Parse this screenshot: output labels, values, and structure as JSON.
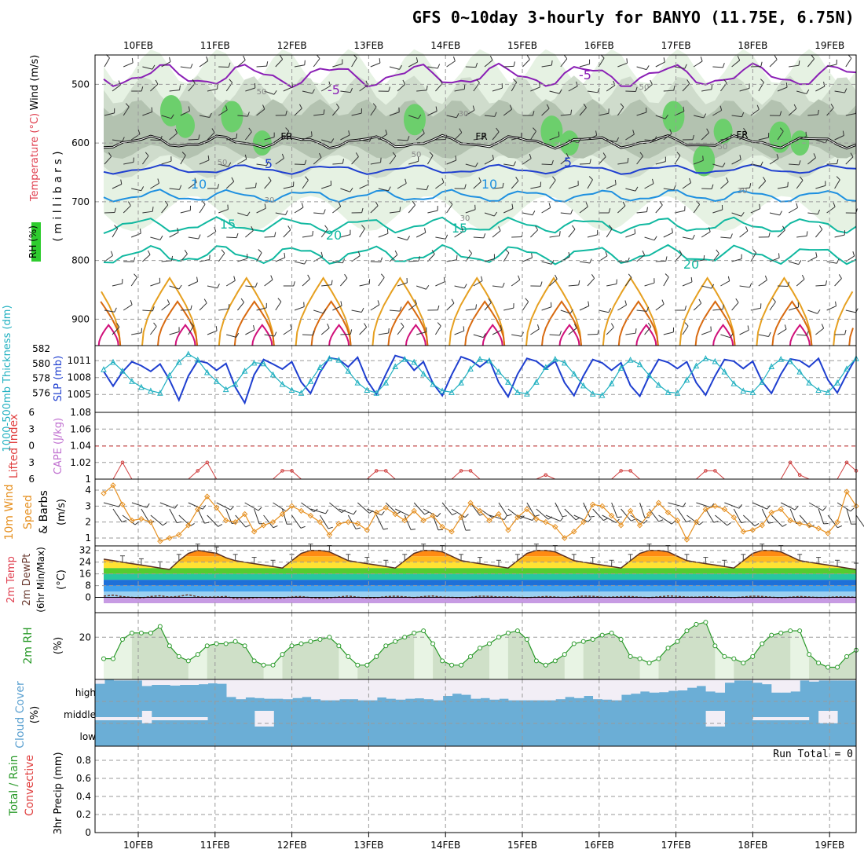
{
  "title": "GFS 0~10day 3-hourly for BANYO (11.75E, 6.75N)",
  "colors": {
    "purple": "#8a1fb5",
    "black": "#000000",
    "blue": "#1f3fd0",
    "lightblue": "#1e90e0",
    "teal": "#10b8a0",
    "orange": "#e6a020",
    "darkorange": "#d86a10",
    "magenta": "#d0107a",
    "rh_light": "#e6f2e3",
    "rh_mid": "#cfdccc",
    "rh_dark": "#b3c2b0",
    "rh_green": "#6ccf6c",
    "slp": "#1f3fd0",
    "thick": "#20b0c0",
    "cape": "#d04040",
    "wind": "#e69020",
    "rh2m": "#2a9a2a",
    "cloud": "#6baed6",
    "cloudgap": "#f2eef6"
  },
  "chart_data": [
    {
      "type": "heatmap",
      "name": "upper-air",
      "y_label_parts": [
        "RH (%)",
        "Temperature (°C)",
        "Wind (m/s)"
      ],
      "y_axis_label": "( m i l l i b a r s )",
      "y_ticks": [
        500,
        600,
        700,
        800,
        900
      ],
      "x_labels": [
        "10FEB",
        "11FEB",
        "12FEB",
        "13FEB",
        "14FEB",
        "15FEB",
        "16FEB",
        "17FEB",
        "18FEB",
        "19FEB"
      ],
      "contour_labels": [
        "-5",
        "-5",
        "FR",
        "FR",
        "FR",
        "5",
        "5",
        "10",
        "10",
        "15",
        "15",
        "20",
        "20"
      ],
      "rh_labels": [
        "50",
        "30",
        "50",
        "30",
        "50",
        "50",
        "30",
        "30",
        "50"
      ]
    },
    {
      "type": "line",
      "name": "thickness-slp",
      "ylabel_left": "1000-500mb Thickness (dm)",
      "ylabel_right": "SLP (mb)",
      "left_ticks": [
        582,
        580,
        578,
        576
      ],
      "right_ticks": [
        1011,
        1008,
        1005
      ],
      "series": [
        {
          "name": "SLP",
          "values": [
            1009.1,
            1006.5,
            1009.0,
            1010.8,
            1010.1,
            1009.1,
            1010.4,
            1007.6,
            1004.0,
            1008.3,
            1011.0,
            1010.6,
            1009.3,
            1010.5,
            1006.3,
            1003.5,
            1008.5,
            1011.2,
            1010.4,
            1009.5,
            1010.8,
            1007.2,
            1005.2,
            1008.9,
            1011.5,
            1011.2,
            1009.9,
            1011.6,
            1007.5,
            1005.0,
            1008.6,
            1011.9,
            1011.4,
            1009.3,
            1010.8,
            1007.0,
            1004.8,
            1008.5,
            1011.7,
            1011.1,
            1009.9,
            1011.2,
            1007.1,
            1004.6,
            1008.6,
            1011.4,
            1010.9,
            1009.6,
            1010.9,
            1007.1,
            1004.8,
            1008.3,
            1011.2,
            1010.6,
            1009.3,
            1010.6,
            1006.6,
            1004.7,
            1008.3,
            1011.2,
            1010.7,
            1009.6,
            1010.8,
            1007.1,
            1004.9,
            1008.3,
            1011.2,
            1010.9,
            1009.6,
            1010.9,
            1007.3,
            1005.2,
            1008.6,
            1011.3,
            1011.0,
            1009.9,
            1011.4,
            1007.6,
            1005.3,
            1008.6,
            1011.6
          ]
        },
        {
          "name": "Thickness",
          "values": [
            579.2,
            580.2,
            579.0,
            577.6,
            576.8,
            576.3,
            576.0,
            578.4,
            580.2,
            581.3,
            580.5,
            578.8,
            577.6,
            576.5,
            577.2,
            579.0,
            580.1,
            580.0,
            578.5,
            577.2,
            576.4,
            576.0,
            577.6,
            579.5,
            580.7,
            580.5,
            579.0,
            577.4,
            576.4,
            576.0,
            577.4,
            579.6,
            580.6,
            580.2,
            578.6,
            577.2,
            576.3,
            576.1,
            577.4,
            579.3,
            580.6,
            580.4,
            578.9,
            577.5,
            576.1,
            575.9,
            577.5,
            579.5,
            580.6,
            580.1,
            578.6,
            577.0,
            575.9,
            575.7,
            577.3,
            579.4,
            580.5,
            579.9,
            578.4,
            577.1,
            576.1,
            576.0,
            577.8,
            579.7,
            580.7,
            580.3,
            578.9,
            577.3,
            576.3,
            576.1,
            577.5,
            579.6,
            580.6,
            580.3,
            578.9,
            577.4,
            576.4,
            576.1,
            577.4,
            579.3,
            580.7
          ]
        }
      ]
    },
    {
      "type": "line",
      "name": "lifted-index-cape",
      "ylabel_left": "Lifted Index",
      "ylabel_right": "CAPE (J/kg)",
      "left_ticks": [
        "6",
        "3",
        "0",
        "3",
        "6"
      ],
      "right_ticks": [
        "1.08",
        "1.06",
        "1.04",
        "1.02",
        "1"
      ],
      "series": [
        {
          "name": "CAPE",
          "values": [
            1,
            1,
            1.02,
            1,
            1,
            1,
            1,
            1,
            1,
            1,
            1.01,
            1.02,
            1,
            1,
            1,
            1,
            1,
            1,
            1,
            1.01,
            1.01,
            1,
            1,
            1,
            1,
            1,
            1,
            1,
            1,
            1.01,
            1.01,
            1,
            1,
            1,
            1,
            1,
            1,
            1,
            1.01,
            1.01,
            1,
            1,
            1,
            1,
            1,
            1,
            1,
            1.005,
            1,
            1,
            1,
            1,
            1,
            1,
            1,
            1.01,
            1.01,
            1,
            1,
            1,
            1,
            1,
            1,
            1,
            1.01,
            1.01,
            1,
            1,
            1,
            1,
            1,
            1,
            1,
            1.02,
            1.005,
            1,
            1,
            1,
            1,
            1.02,
            1.01
          ]
        }
      ]
    },
    {
      "type": "line",
      "name": "10m-wind",
      "ylabel": "10m Wind Speed & Barbs (m/s)",
      "y_ticks": [
        4,
        3,
        2,
        1
      ],
      "series": [
        {
          "name": "Wind speed",
          "values": [
            3.8,
            4.3,
            3.1,
            2.1,
            2.2,
            2.0,
            0.8,
            1.0,
            1.2,
            1.8,
            2.8,
            3.6,
            2.9,
            2.1,
            2.0,
            2.5,
            1.4,
            1.8,
            2.0,
            2.5,
            3.0,
            2.7,
            2.4,
            2.0,
            1.2,
            1.9,
            2.0,
            1.9,
            1.5,
            2.6,
            2.9,
            2.5,
            2.1,
            2.7,
            2.1,
            2.4,
            1.7,
            1.4,
            2.3,
            3.2,
            2.7,
            2.1,
            2.5,
            1.5,
            2.3,
            2.8,
            2.2,
            2.0,
            1.7,
            1.0,
            1.4,
            2.0,
            3.1,
            3.0,
            2.4,
            1.8,
            2.7,
            1.8,
            2.5,
            3.2,
            2.6,
            2.1,
            0.9,
            2.0,
            2.8,
            3.0,
            2.8,
            2.3,
            1.4,
            1.5,
            1.8,
            2.6,
            2.8,
            2.1,
            1.9,
            1.8,
            1.6,
            1.3,
            2.0,
            3.9,
            3.0
          ]
        }
      ]
    },
    {
      "type": "area",
      "name": "2m-temp",
      "ylabel": "2m Temp 2m DewPt (6hr Min/Max) (°C)",
      "y_ticks": [
        32,
        24,
        16,
        8,
        0
      ],
      "series": [
        {
          "name": "Temp",
          "values": [
            26,
            25,
            24,
            23,
            22,
            21,
            20,
            19,
            25,
            30,
            32,
            31,
            30,
            27,
            25,
            24,
            23,
            22,
            21,
            20,
            25,
            30,
            32,
            32,
            31,
            28,
            25,
            24,
            23,
            22,
            21,
            20,
            25,
            30,
            32,
            32,
            31,
            28,
            25,
            24,
            23,
            22,
            21,
            20,
            25,
            30,
            32,
            32,
            31,
            28,
            25,
            24,
            23,
            22,
            21,
            20,
            25,
            30,
            32,
            32,
            31,
            28,
            25,
            24,
            23,
            22,
            21,
            20,
            25,
            30,
            32,
            32,
            31,
            28,
            25,
            24,
            23,
            22,
            21,
            20,
            19
          ]
        },
        {
          "name": "DewPt",
          "values": [
            0.8,
            1.5,
            0.5,
            0.0,
            -0.4,
            0.6,
            1.1,
            0.2,
            0.7,
            1.8,
            0.4,
            0.2,
            0.3,
            0.6,
            -0.9,
            -1.0,
            -0.3,
            -0.1,
            -0.6,
            -0.5,
            0.4,
            0.6,
            -0.2,
            -0.7,
            -0.4,
            0.3,
            0.9,
            0.2,
            -0.4,
            -0.3,
            0.5,
            0.8,
            0.4,
            -0.2,
            0.6,
            0.9,
            0.2,
            0.0,
            -0.4,
            0.1,
            0.8,
            0.7,
            0.3,
            0.4,
            0.1,
            -0.2,
            0.2,
            0.6,
            0.3,
            -0.1,
            0.4,
            0.8,
            0.7,
            0.2,
            0.2,
            0.5,
            0.6,
            0.1,
            -0.2,
            0.4,
            0.9,
            0.7,
            0.2,
            0.1,
            0.5,
            0.4,
            0.0,
            -0.2,
            0.3,
            0.8,
            0.6,
            0.1,
            -0.3,
            0.2,
            0.6,
            0.3,
            -0.1,
            0.0,
            0.4,
            0.3,
            0.1
          ]
        }
      ]
    },
    {
      "type": "area",
      "name": "2m-rh",
      "ylabel": "2m RH (%)",
      "y_ticks": [
        20
      ],
      "series": [
        {
          "name": "RH",
          "values": [
            10,
            10,
            19,
            22,
            22,
            22,
            25,
            16,
            11,
            9,
            12,
            16,
            17,
            17,
            18,
            16,
            9,
            7,
            7,
            12,
            16,
            17,
            18,
            19,
            20,
            16,
            11,
            7,
            7,
            11,
            16,
            18,
            20,
            22,
            23,
            17,
            9,
            7,
            7,
            11,
            15,
            17,
            20,
            22,
            23,
            19,
            9,
            7,
            9,
            12,
            17,
            18,
            19,
            21,
            22,
            19,
            11,
            10,
            8,
            10,
            15,
            18,
            23,
            26,
            27,
            16,
            11,
            10,
            8,
            11,
            17,
            21,
            22,
            23,
            23,
            12,
            8,
            6,
            6,
            11,
            14
          ]
        }
      ]
    },
    {
      "type": "bar",
      "name": "cloud-cover",
      "ylabel": "Cloud Cover (%)",
      "level_labels": [
        "high",
        "middle",
        "low"
      ],
      "series": [
        {
          "name": "high",
          "values": [
            80,
            98,
            95,
            95,
            95,
            70,
            75,
            75,
            72,
            75,
            75,
            78,
            82,
            80,
            20,
            10,
            18,
            15,
            12,
            12,
            10,
            15,
            20,
            10,
            5,
            5,
            10,
            10,
            5,
            5,
            18,
            12,
            8,
            12,
            14,
            10,
            5,
            25,
            35,
            30,
            12,
            15,
            8,
            12,
            5,
            5,
            5,
            5,
            5,
            10,
            20,
            15,
            25,
            10,
            8,
            5,
            30,
            35,
            45,
            40,
            42,
            48,
            50,
            62,
            70,
            45,
            40,
            85,
            95,
            95,
            85,
            78,
            40,
            40,
            45,
            95,
            90,
            95,
            95,
            95,
            95
          ]
        },
        {
          "name": "middle",
          "values": [
            0,
            0,
            0,
            0,
            0,
            85,
            0,
            0,
            0,
            0,
            0,
            0,
            0,
            0,
            0,
            0,
            0,
            100,
            100,
            0,
            0,
            0,
            0,
            0,
            0,
            0,
            0,
            0,
            0,
            0,
            0,
            0,
            0,
            0,
            0,
            0,
            0,
            0,
            0,
            0,
            0,
            0,
            0,
            0,
            0,
            0,
            0,
            0,
            0,
            0,
            0,
            0,
            0,
            0,
            0,
            0,
            0,
            0,
            0,
            0,
            0,
            0,
            0,
            0,
            0,
            100,
            100,
            0,
            0,
            0,
            0,
            0,
            0,
            0,
            0,
            0,
            0,
            85,
            85,
            0,
            0
          ]
        }
      ]
    },
    {
      "type": "bar",
      "name": "precip",
      "ylabel_parts": [
        "Total / Rain",
        "Convective"
      ],
      "ylabel": "3hr Precip (mm)",
      "y_ticks": [
        "0.8",
        "0.6",
        "0.4",
        "0.2",
        "0"
      ],
      "annotation": "Run Total = 0",
      "x_labels": [
        "10FEB",
        "11FEB",
        "12FEB",
        "13FEB",
        "14FEB",
        "15FEB",
        "16FEB",
        "17FEB",
        "18FEB",
        "19FEB"
      ],
      "series": [
        {
          "name": "precip",
          "values": [
            0
          ]
        }
      ]
    }
  ]
}
